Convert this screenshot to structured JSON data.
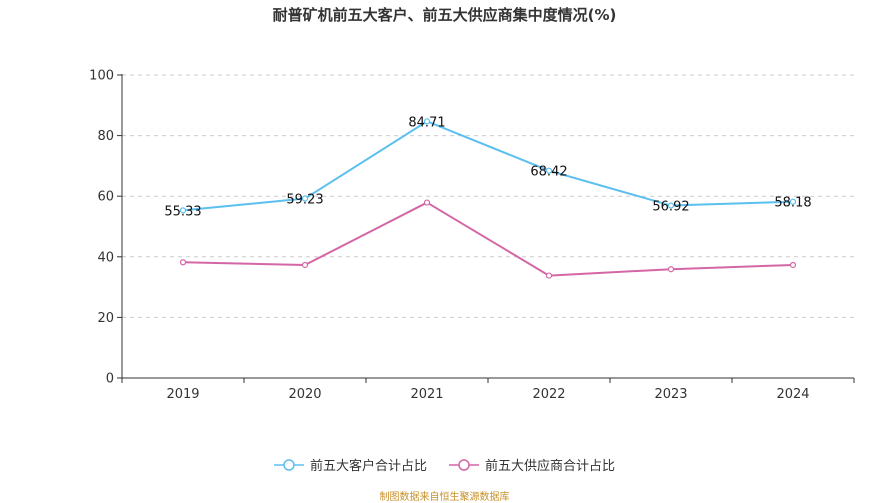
{
  "title": "耐普矿机前五大客户、前五大供应商集中度情况(%)",
  "footer": "制图数据来自恒生聚源数据库",
  "chart_data": {
    "type": "line",
    "categories": [
      "2019",
      "2020",
      "2021",
      "2022",
      "2023",
      "2024"
    ],
    "ylim": [
      0,
      100
    ],
    "yticks": [
      0,
      20,
      40,
      60,
      80,
      100
    ],
    "grid": true,
    "legend_position": "bottom",
    "series": [
      {
        "name": "前五大客户合计占比",
        "color": "#5bbfef",
        "values": [
          55.33,
          59.23,
          84.71,
          68.42,
          56.92,
          58.18
        ],
        "labels": [
          "55.33",
          "59.23",
          "84.71",
          "68.42",
          "56.92",
          "58.18"
        ]
      },
      {
        "name": "前五大供应商合计占比",
        "color": "#d466a6",
        "values": [
          38.2,
          37.3,
          57.9,
          33.8,
          35.9,
          37.3
        ],
        "labels": []
      }
    ]
  }
}
